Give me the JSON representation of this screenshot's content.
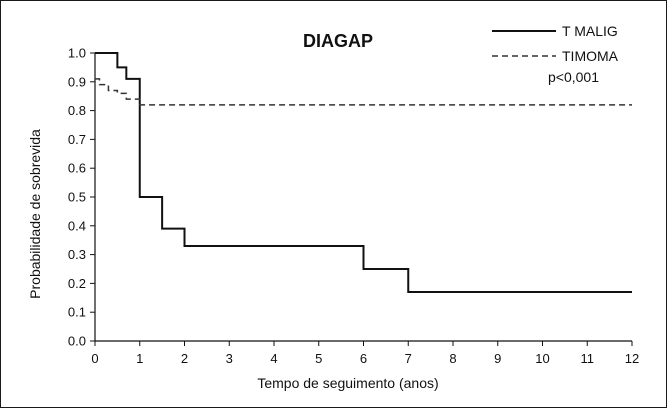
{
  "chart_data": {
    "type": "line",
    "title": "DIAGAP",
    "xlabel": "Tempo de seguimento (anos)",
    "ylabel": "Probabilidade de sobrevida",
    "xlim": [
      0,
      12
    ],
    "ylim": [
      0,
      1
    ],
    "xticks": [
      "0",
      "1",
      "2",
      "3",
      "4",
      "5",
      "6",
      "7",
      "8",
      "9",
      "10",
      "11",
      "12"
    ],
    "yticks": [
      "0.0",
      "0.1",
      "0.2",
      "0.3",
      "0.4",
      "0.5",
      "0.6",
      "0.7",
      "0.8",
      "0.9",
      "1.0"
    ],
    "grid": false,
    "legend_position": "top-right",
    "annotation": "p<0,001",
    "series": [
      {
        "name": "T MALIG",
        "style": "solid",
        "step": true,
        "x": [
          0,
          0.5,
          0.7,
          1.0,
          1.5,
          2.0,
          6.0,
          7.0,
          12.0
        ],
        "y": [
          1.0,
          0.95,
          0.91,
          0.5,
          0.39,
          0.33,
          0.25,
          0.17,
          0.17
        ]
      },
      {
        "name": "TIMOMA",
        "style": "dashed",
        "step": true,
        "x": [
          0,
          0.1,
          0.3,
          0.5,
          0.7,
          1.0,
          12.0
        ],
        "y": [
          0.91,
          0.89,
          0.87,
          0.86,
          0.84,
          0.82,
          0.82
        ]
      }
    ]
  }
}
